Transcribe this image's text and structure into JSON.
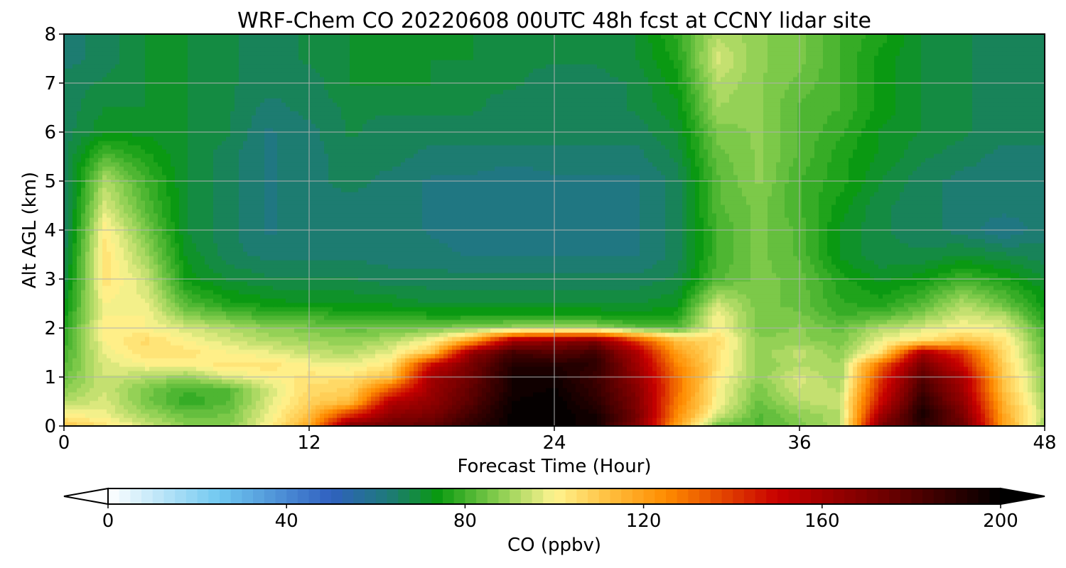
{
  "chart_data": {
    "type": "heatmap",
    "title": "WRF-Chem CO  20220608 00UTC 48h fcst at CCNY lidar site",
    "xlabel": "Forecast Time (Hour)",
    "ylabel": "Alt AGL (km)",
    "xlim": [
      0,
      48
    ],
    "ylim": [
      0,
      8
    ],
    "x_ticks": [
      0,
      12,
      24,
      36,
      48
    ],
    "y_ticks": [
      0,
      1,
      2,
      3,
      4,
      5,
      6,
      7,
      8
    ],
    "grid": true,
    "x_hours": [
      0,
      2,
      4,
      6,
      8,
      10,
      12,
      14,
      16,
      18,
      20,
      22,
      24,
      26,
      28,
      30,
      32,
      34,
      36,
      38,
      40,
      42,
      44,
      46,
      48
    ],
    "alt_km": [
      0,
      0.25,
      0.5,
      0.75,
      1,
      1.25,
      1.5,
      1.75,
      2,
      2.25,
      2.5,
      3,
      3.5,
      4,
      4.5,
      5,
      5.5,
      6,
      6.5,
      7,
      7.5,
      8
    ],
    "co_ppbv": [
      [
        112,
        104,
        95,
        88,
        86,
        100,
        118,
        170,
        175,
        178,
        190,
        199,
        200,
        195,
        170,
        120,
        84,
        82,
        86,
        92,
        170,
        190,
        175,
        120,
        90
      ],
      [
        100,
        98,
        90,
        84,
        85,
        98,
        112,
        140,
        165,
        170,
        185,
        199,
        200,
        195,
        172,
        125,
        96,
        82,
        88,
        92,
        160,
        195,
        170,
        118,
        92
      ],
      [
        92,
        96,
        86,
        78,
        82,
        96,
        108,
        112,
        155,
        165,
        180,
        198,
        200,
        190,
        170,
        128,
        100,
        84,
        92,
        95,
        150,
        190,
        165,
        115,
        90
      ],
      [
        88,
        95,
        86,
        80,
        82,
        95,
        106,
        108,
        135,
        162,
        178,
        195,
        198,
        188,
        168,
        130,
        100,
        86,
        95,
        92,
        145,
        185,
        160,
        112,
        88
      ],
      [
        84,
        95,
        92,
        88,
        96,
        100,
        104,
        104,
        112,
        160,
        175,
        195,
        196,
        186,
        165,
        130,
        102,
        88,
        96,
        90,
        140,
        180,
        158,
        110,
        88
      ],
      [
        82,
        96,
        100,
        100,
        104,
        104,
        100,
        98,
        104,
        150,
        172,
        192,
        192,
        190,
        162,
        126,
        104,
        88,
        92,
        90,
        132,
        172,
        148,
        108,
        86
      ],
      [
        80,
        98,
        104,
        104,
        100,
        98,
        94,
        92,
        98,
        112,
        165,
        185,
        180,
        185,
        158,
        120,
        104,
        88,
        94,
        88,
        104,
        160,
        140,
        106,
        84
      ],
      [
        78,
        100,
        106,
        100,
        96,
        92,
        90,
        88,
        92,
        100,
        120,
        160,
        165,
        170,
        140,
        112,
        106,
        88,
        88,
        86,
        98,
        104,
        112,
        104,
        82
      ],
      [
        76,
        102,
        100,
        96,
        92,
        88,
        86,
        84,
        84,
        86,
        88,
        90,
        92,
        90,
        84,
        82,
        100,
        86,
        88,
        84,
        92,
        96,
        100,
        98,
        80
      ],
      [
        74,
        100,
        100,
        88,
        84,
        80,
        80,
        78,
        78,
        76,
        76,
        76,
        76,
        76,
        74,
        76,
        100,
        86,
        86,
        80,
        82,
        88,
        96,
        92,
        76
      ],
      [
        72,
        100,
        98,
        82,
        76,
        74,
        72,
        72,
        72,
        70,
        70,
        70,
        70,
        70,
        70,
        72,
        95,
        86,
        84,
        78,
        76,
        82,
        92,
        84,
        74
      ],
      [
        68,
        104,
        95,
        74,
        70,
        68,
        68,
        68,
        66,
        66,
        66,
        66,
        66,
        66,
        66,
        68,
        82,
        86,
        84,
        76,
        72,
        74,
        80,
        76,
        70
      ],
      [
        66,
        104,
        90,
        72,
        66,
        64,
        64,
        64,
        64,
        64,
        62,
        62,
        62,
        62,
        62,
        66,
        80,
        86,
        82,
        72,
        68,
        68,
        70,
        68,
        66
      ],
      [
        64,
        102,
        86,
        70,
        66,
        62,
        64,
        64,
        64,
        62,
        60,
        60,
        60,
        60,
        62,
        66,
        80,
        86,
        82,
        72,
        68,
        66,
        64,
        60,
        64
      ],
      [
        64,
        96,
        82,
        70,
        66,
        62,
        64,
        64,
        64,
        62,
        60,
        60,
        60,
        60,
        62,
        66,
        82,
        86,
        80,
        74,
        68,
        66,
        64,
        64,
        64
      ],
      [
        64,
        92,
        80,
        70,
        66,
        62,
        64,
        66,
        64,
        62,
        62,
        60,
        62,
        62,
        62,
        66,
        82,
        88,
        80,
        76,
        70,
        66,
        64,
        64,
        64
      ],
      [
        66,
        82,
        76,
        70,
        66,
        62,
        64,
        66,
        66,
        64,
        64,
        64,
        64,
        64,
        64,
        68,
        84,
        88,
        82,
        76,
        72,
        68,
        66,
        64,
        64
      ],
      [
        66,
        72,
        72,
        70,
        68,
        62,
        64,
        68,
        66,
        66,
        66,
        66,
        66,
        66,
        66,
        70,
        86,
        88,
        82,
        78,
        72,
        70,
        68,
        66,
        66
      ],
      [
        66,
        70,
        70,
        70,
        68,
        64,
        66,
        68,
        68,
        68,
        68,
        66,
        66,
        66,
        68,
        72,
        90,
        88,
        82,
        80,
        74,
        70,
        68,
        66,
        66
      ],
      [
        66,
        68,
        70,
        70,
        68,
        66,
        66,
        70,
        70,
        70,
        68,
        68,
        66,
        66,
        68,
        74,
        92,
        88,
        84,
        80,
        74,
        70,
        68,
        66,
        66
      ],
      [
        64,
        66,
        70,
        70,
        68,
        66,
        68,
        70,
        70,
        70,
        70,
        68,
        68,
        68,
        70,
        76,
        96,
        88,
        86,
        80,
        74,
        70,
        68,
        66,
        66
      ],
      [
        64,
        66,
        70,
        70,
        68,
        66,
        68,
        70,
        70,
        70,
        70,
        70,
        68,
        68,
        70,
        78,
        92,
        88,
        86,
        80,
        76,
        70,
        68,
        66,
        66
      ]
    ],
    "colorbar": {
      "label": "CO  (ppbv)",
      "min": 0,
      "max": 200,
      "ticks": [
        0,
        40,
        80,
        120,
        160,
        200
      ],
      "extend": "both",
      "colors": [
        [
          0,
          "#ffffff"
        ],
        [
          25,
          "#70c8f0"
        ],
        [
          50,
          "#3060c0"
        ],
        [
          63,
          "#1e7a78"
        ],
        [
          74,
          "#0a9a10"
        ],
        [
          86,
          "#7ac848"
        ],
        [
          100,
          "#fff490"
        ],
        [
          112,
          "#ffc040"
        ],
        [
          125,
          "#ff8c00"
        ],
        [
          150,
          "#c80000"
        ],
        [
          175,
          "#6a0000"
        ],
        [
          200,
          "#000000"
        ]
      ]
    }
  }
}
